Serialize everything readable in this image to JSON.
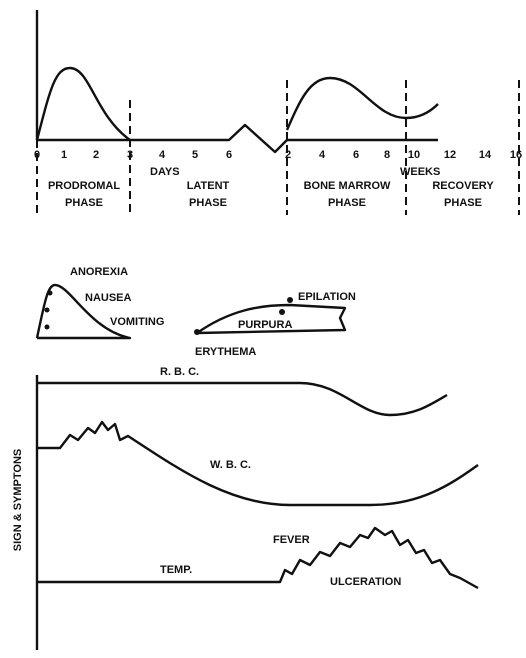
{
  "axis": {
    "days_ticks": [
      "0",
      "1",
      "2",
      "3",
      "4",
      "5",
      "6"
    ],
    "days_label": "DAYS",
    "weeks_ticks": [
      "2",
      "4",
      "6",
      "8",
      "10",
      "12",
      "14",
      "16"
    ],
    "weeks_label": "WEEKS"
  },
  "phases": [
    [
      "PRODROMAL",
      "PHASE"
    ],
    [
      "LATENT",
      "PHASE"
    ],
    [
      "BONE MARROW",
      "PHASE"
    ],
    [
      "RECOVERY",
      "PHASE"
    ]
  ],
  "symptoms": {
    "y_label": "SIGN & SYMPTONS",
    "anorexia": "ANOREXIA",
    "nausea": "NAUSEA",
    "vomiting": "VOMITING",
    "epilation": "EPILATION",
    "purpura": "PURPURA",
    "erythema": "ERYTHEMA",
    "rbc": "R. B. C.",
    "wbc": "W. B. C.",
    "fever": "FEVER",
    "temp": "TEMP.",
    "ulceration": "ULCERATION"
  }
}
